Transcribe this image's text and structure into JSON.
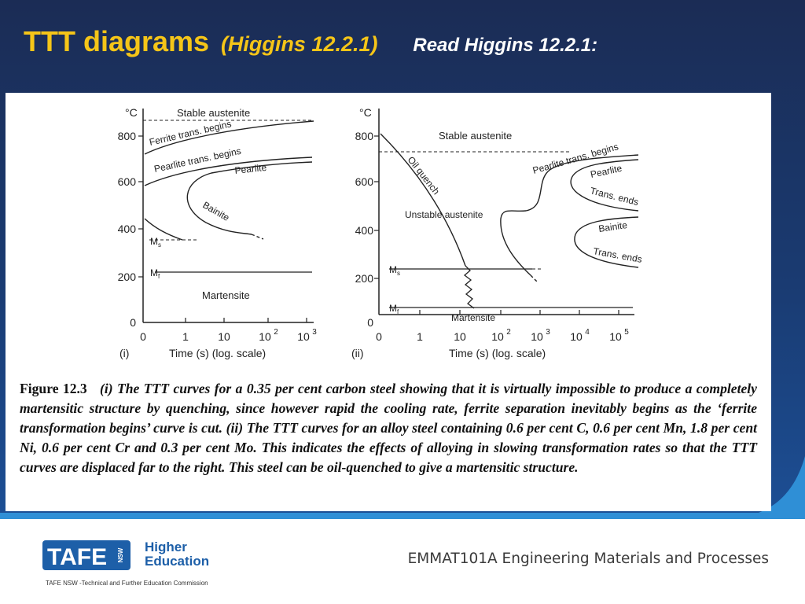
{
  "slide": {
    "title": "TTT diagrams",
    "title_ref": "(Higgins 12.2.1)",
    "title_note": "Read Higgins 12.2.1:"
  },
  "diagram_i": {
    "unit": "°C",
    "y_ticks": [
      "800",
      "600",
      "400",
      "200",
      "0"
    ],
    "x_ticks": [
      "0",
      "1",
      "10",
      "10",
      "10"
    ],
    "x_tick_exps": [
      "2",
      "3"
    ],
    "panel_label": "(i)",
    "xlabel": "Time (s) (log. scale)",
    "labels": {
      "stable_austenite": "Stable austenite",
      "ferrite_begins": "Ferrite trans. begins",
      "pearlite_begins": "Pearlite trans. begins",
      "pearlite": "Pearlite",
      "bainite": "Bainite",
      "ms": "M",
      "ms_sub": "s",
      "mf": "M",
      "mf_sub": "f",
      "martensite": "Martensite"
    }
  },
  "diagram_ii": {
    "unit": "°C",
    "y_ticks": [
      "800",
      "600",
      "400",
      "200",
      "0"
    ],
    "x_ticks": [
      "0",
      "1",
      "10",
      "10",
      "10",
      "10",
      "10"
    ],
    "x_tick_exps": [
      "2",
      "3",
      "4",
      "5"
    ],
    "panel_label": "(ii)",
    "xlabel": "Time (s) (log. scale)",
    "labels": {
      "stable_austenite": "Stable austenite",
      "oil_quench": "Oil quench",
      "unstable_austenite": "Unstable austenite",
      "pearlite_begins": "Pearlite trans. begins",
      "pearlite": "Pearlite",
      "trans_ends_1": "Trans. ends",
      "bainite": "Bainite",
      "trans_ends_2": "Trans. ends",
      "ms": "M",
      "ms_sub": "s",
      "mf": "M",
      "mf_sub": "f",
      "martensite": "Martensite"
    }
  },
  "caption": {
    "fig_num": "Figure 12.3",
    "text": "(i) The TTT curves for a 0.35 per cent carbon steel showing that it is virtually impossible to produce a completely martensitic structure by quenching, since however rapid the cooling rate, ferrite separation inevitably begins as the ‘ferrite transformation begins’ curve is cut. (ii) The TTT curves for an alloy steel containing 0.6 per cent C, 0.6 per cent Mn, 1.8 per cent Ni, 0.6 per cent Cr and 0.3 per cent Mo. This indicates the effects of alloying in slowing transformation rates so that the TTT curves are displaced far to the right. This steel can be oil-quenched to give a martensitic structure."
  },
  "footer": {
    "logo_text": "TAFE",
    "logo_side": "NSW",
    "logo_line1": "Higher",
    "logo_line2": "Education",
    "course": "EMMAT101A Engineering Materials and Processes",
    "org": "TAFE NSW -Technical and Further Education Commission"
  }
}
